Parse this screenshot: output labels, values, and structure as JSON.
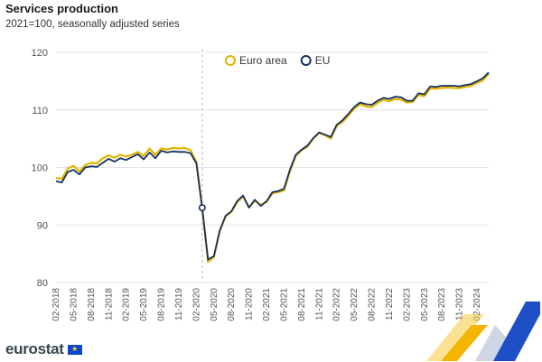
{
  "title": "Services production",
  "subtitle": "2021=100, seasonally adjusted series",
  "brand": {
    "name": "eurostat",
    "flag_symbol": "★"
  },
  "colors": {
    "euro_area": "#e0b400",
    "eu": "#17315f",
    "grid": "#e4e4e4",
    "axis_text": "#555555"
  },
  "chart_data": {
    "type": "line",
    "title": "Services production",
    "subtitle": "2021=100, seasonally adjusted series",
    "ylim": [
      80,
      120
    ],
    "yticks": [
      80,
      90,
      100,
      110,
      120
    ],
    "grid": true,
    "legend_position": "top-center",
    "x_tick_labels": [
      "02-2018",
      "05-2018",
      "08-2018",
      "11-2018",
      "02-2019",
      "05-2019",
      "08-2019",
      "11-2019",
      "02-2020",
      "05-2020",
      "08-2020",
      "11-2020",
      "02-2021",
      "05-2021",
      "08-2021",
      "11-2021",
      "02-2022",
      "05-2022",
      "08-2022",
      "11-2022",
      "02-2023",
      "05-2023",
      "08-2023",
      "11-2023",
      "02-2024"
    ],
    "x_start": "02-2018",
    "x_end": "02-2024",
    "annotation": {
      "month": "03-2020",
      "value": 93.0
    },
    "series": [
      {
        "name": "Euro area",
        "values": [
          98.2,
          98.0,
          99.8,
          100.3,
          99.3,
          100.4,
          100.8,
          100.7,
          101.6,
          102.1,
          101.7,
          102.2,
          101.9,
          102.2,
          102.7,
          102.0,
          103.3,
          102.2,
          103.3,
          103.1,
          103.4,
          103.3,
          103.4,
          103.0,
          101.0,
          93.0,
          83.6,
          84.4,
          88.9,
          91.5,
          92.3,
          94.0,
          95.0,
          93.1,
          94.2,
          93.5,
          94.0,
          95.5,
          95.7,
          96.0,
          99.3,
          102.0,
          103.0,
          103.6,
          105.0,
          106.0,
          105.6,
          105.0,
          107.2,
          107.9,
          109.0,
          110.2,
          111.0,
          110.6,
          110.5,
          111.2,
          111.8,
          111.5,
          111.9,
          111.8,
          111.3,
          111.4,
          112.6,
          112.4,
          113.7,
          113.7,
          113.8,
          113.9,
          113.8,
          113.8,
          114.0,
          114.2,
          114.7,
          115.1,
          116.3
        ]
      },
      {
        "name": "EU",
        "values": [
          97.6,
          97.4,
          99.2,
          99.6,
          98.8,
          100.0,
          100.2,
          100.1,
          100.8,
          101.5,
          101.0,
          101.6,
          101.3,
          101.8,
          102.3,
          101.4,
          102.6,
          101.6,
          102.9,
          102.6,
          102.8,
          102.7,
          102.7,
          102.5,
          100.7,
          93.0,
          84.0,
          84.6,
          89.0,
          91.6,
          92.4,
          94.2,
          95.1,
          93.0,
          94.4,
          93.3,
          94.1,
          95.7,
          95.9,
          96.3,
          99.6,
          102.2,
          103.1,
          103.8,
          105.1,
          106.1,
          105.7,
          105.3,
          107.4,
          108.2,
          109.3,
          110.5,
          111.3,
          111.0,
          110.9,
          111.6,
          112.1,
          111.9,
          112.3,
          112.2,
          111.6,
          111.6,
          112.9,
          112.7,
          114.1,
          114.0,
          114.2,
          114.2,
          114.2,
          114.1,
          114.3,
          114.5,
          115.0,
          115.5,
          116.5
        ]
      }
    ]
  }
}
